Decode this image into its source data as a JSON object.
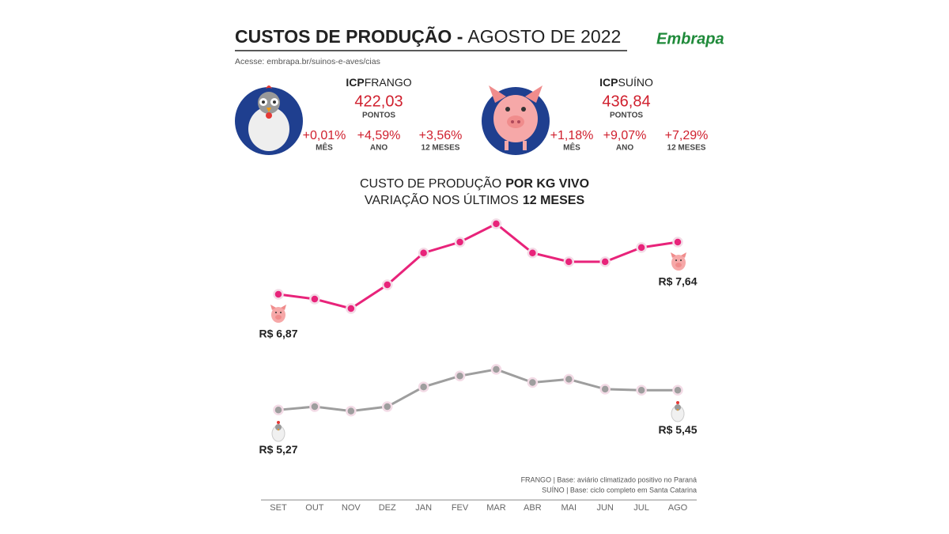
{
  "header": {
    "title_bold": "CUSTOS DE PRODUÇÃO -",
    "title_light": "AGOSTO DE 2022",
    "url": "Acesse: embrapa.br/suinos-e-aves/cias",
    "logo": "Embrapa"
  },
  "indices": [
    {
      "label_bold": "ICP",
      "label": "FRANGO",
      "value": "422,03",
      "unit": "PONTOS",
      "changes": [
        {
          "value": "+0,01%",
          "label": "MÊS"
        },
        {
          "value": "+4,59%",
          "label": "ANO"
        },
        {
          "value": "+3,56%",
          "label": "12 MESES"
        }
      ]
    },
    {
      "label_bold": "ICP",
      "label": "SUÍNO",
      "value": "436,84",
      "unit": "PONTOS",
      "changes": [
        {
          "value": "+1,18%",
          "label": "MÊS"
        },
        {
          "value": "+9,07%",
          "label": "ANO"
        },
        {
          "value": "+7,29%",
          "label": "12 MESES"
        }
      ]
    }
  ],
  "chart_data": {
    "type": "line",
    "title": [
      "CUSTO DE PRODUÇÃO",
      "POR KG VIVO"
    ],
    "subtitle": [
      "VARIAÇÃO NOS ÚLTIMOS",
      "12 MESES"
    ],
    "categories": [
      "SET",
      "OUT",
      "NOV",
      "DEZ",
      "JAN",
      "FEV",
      "MAR",
      "ABR",
      "MAI",
      "JUN",
      "JUL",
      "AGO"
    ],
    "series": [
      {
        "name": "SUÍNO",
        "color": "#e8237a",
        "values": [
          6.87,
          6.8,
          6.66,
          7.01,
          7.48,
          7.64,
          7.91,
          7.48,
          7.35,
          7.35,
          7.56,
          7.64
        ],
        "value_labels": [
          "R$ 6,87",
          null,
          null,
          null,
          null,
          null,
          null,
          null,
          null,
          null,
          null,
          "R$ 7,64"
        ]
      },
      {
        "name": "FRANGO",
        "color": "#9e9e9e",
        "axis": "y2",
        "values": [
          5.27,
          5.3,
          5.26,
          5.3,
          5.48,
          5.58,
          5.64,
          5.52,
          5.55,
          5.46,
          5.45,
          5.45
        ],
        "value_labels": [
          "R$ 5,27",
          null,
          null,
          null,
          null,
          null,
          null,
          null,
          null,
          null,
          null,
          "R$ 5,45"
        ]
      }
    ],
    "ylim": [
      4.21,
      8.06
    ],
    "y2lim": [
      4.68,
      7.06
    ],
    "notes": [
      "FRANGO | Base: aviário climatizado positivo no Paraná",
      "SUÍNO | Base: ciclo completo em Santa Catarina"
    ]
  }
}
